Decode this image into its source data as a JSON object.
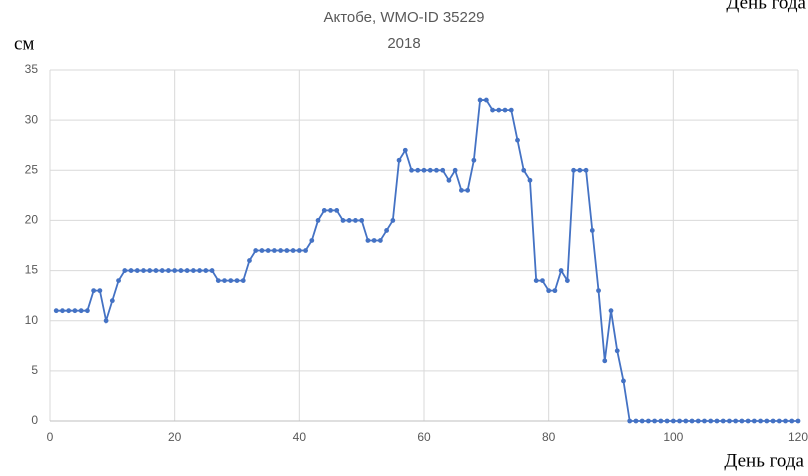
{
  "chart_data": {
    "type": "line",
    "title": "Актобе, WMO-ID 35229",
    "subtitle": "2018",
    "y_label": "см",
    "x_label": "День года",
    "x": [
      1,
      2,
      3,
      4,
      5,
      6,
      7,
      8,
      9,
      10,
      11,
      12,
      13,
      14,
      15,
      16,
      17,
      18,
      19,
      20,
      21,
      22,
      23,
      24,
      25,
      26,
      27,
      28,
      29,
      30,
      31,
      32,
      33,
      34,
      35,
      36,
      37,
      38,
      39,
      40,
      41,
      42,
      43,
      44,
      45,
      46,
      47,
      48,
      49,
      50,
      51,
      52,
      53,
      54,
      55,
      56,
      57,
      58,
      59,
      60,
      61,
      62,
      63,
      64,
      65,
      66,
      67,
      68,
      69,
      70,
      71,
      72,
      73,
      74,
      75,
      76,
      77,
      78,
      79,
      80,
      81,
      82,
      83,
      84,
      85,
      86,
      87,
      88,
      89,
      90,
      91,
      92,
      93,
      94,
      95,
      96,
      97,
      98,
      99,
      100,
      101,
      102,
      103,
      104,
      105,
      106,
      107,
      108,
      109,
      110,
      111,
      112,
      113,
      114,
      115,
      116,
      117,
      118,
      119,
      120
    ],
    "values": [
      11,
      11,
      11,
      11,
      11,
      11,
      13,
      13,
      10,
      12,
      14,
      15,
      15,
      15,
      15,
      15,
      15,
      15,
      15,
      15,
      15,
      15,
      15,
      15,
      15,
      15,
      14,
      14,
      14,
      14,
      14,
      16,
      17,
      17,
      17,
      17,
      17,
      17,
      17,
      17,
      17,
      18,
      20,
      21,
      21,
      21,
      20,
      20,
      20,
      20,
      18,
      18,
      18,
      19,
      20,
      26,
      27,
      25,
      25,
      25,
      25,
      25,
      25,
      24,
      25,
      23,
      23,
      26,
      32,
      32,
      31,
      31,
      31,
      31,
      28,
      25,
      24,
      14,
      14,
      13,
      13,
      15,
      14,
      25,
      25,
      25,
      19,
      13,
      6,
      11,
      7,
      4,
      0,
      0,
      0,
      0,
      0,
      0,
      0,
      0,
      0,
      0,
      0,
      0,
      0,
      0,
      0,
      0,
      0,
      0,
      0,
      0,
      0,
      0,
      0,
      0,
      0,
      0,
      0,
      0
    ],
    "color": "#4472c4",
    "xlim": [
      0,
      120
    ],
    "xticks": [
      0,
      20,
      40,
      60,
      80,
      100,
      120
    ],
    "ylim": [
      0,
      35
    ],
    "yticks": [
      0,
      5,
      10,
      15,
      20,
      25,
      30,
      35
    ],
    "grid": true
  }
}
